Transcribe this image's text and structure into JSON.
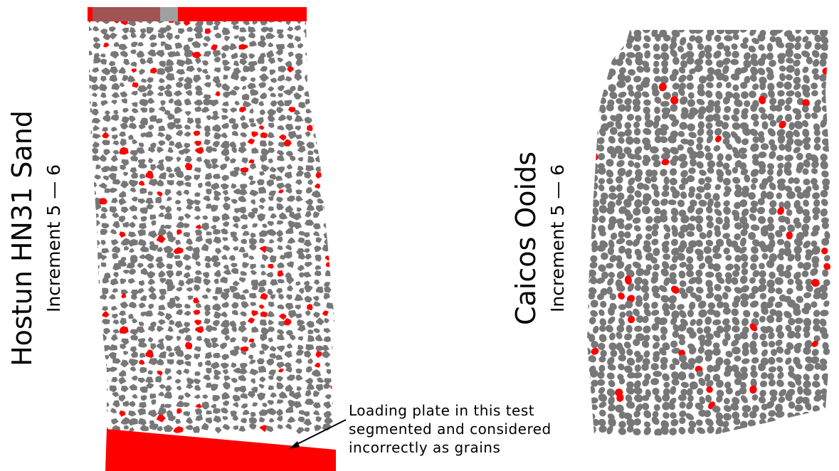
{
  "panels": [
    {
      "title": "Hostun HN31 Sand",
      "subtitle": "Increment 5 — 6"
    },
    {
      "title": "Caicos Ooids",
      "subtitle": "Increment 5 — 6"
    }
  ],
  "annotation": {
    "lines": [
      "Loading plate in this test",
      "segmented and considered",
      "incorrectly as grains"
    ]
  }
}
